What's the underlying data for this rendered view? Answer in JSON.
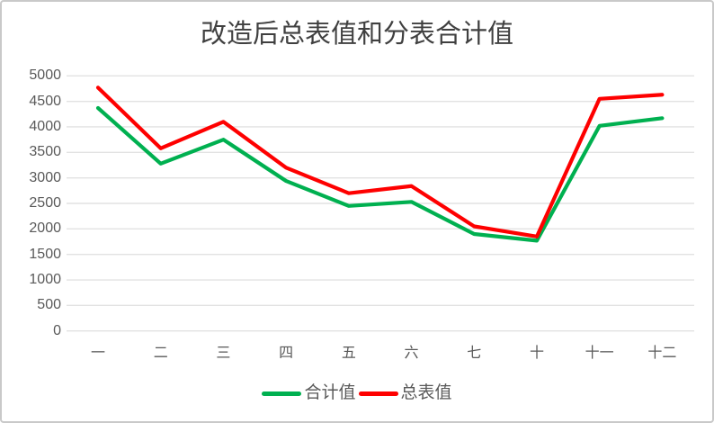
{
  "colors": {
    "background": "#ffffff",
    "frame_border": "#c9c9c9",
    "gridline": "#e2e2e2",
    "axis_text": "#595959",
    "title_text": "#404040",
    "series_green": "#00b050",
    "series_red": "#fe0000"
  },
  "chart_data": {
    "type": "line",
    "title": "改造后总表值和分表合计值",
    "xlabel": "",
    "ylabel": "",
    "categories": [
      "一",
      "二",
      "三",
      "四",
      "五",
      "六",
      "七",
      "十",
      "十一",
      "十二"
    ],
    "series": [
      {
        "id": "sub-meter-sum",
        "name": "合计值",
        "color": "#00b050",
        "values": [
          4370,
          3280,
          3750,
          2940,
          2450,
          2530,
          1900,
          1770,
          4020,
          4170
        ]
      },
      {
        "id": "main-meter",
        "name": "总表值",
        "color": "#fe0000",
        "values": [
          4770,
          3580,
          4100,
          3200,
          2700,
          2840,
          2050,
          1850,
          4550,
          4630
        ]
      }
    ],
    "ylim": [
      0,
      5000
    ],
    "ytick_step": 500,
    "grid": true,
    "legend_position": "bottom"
  }
}
